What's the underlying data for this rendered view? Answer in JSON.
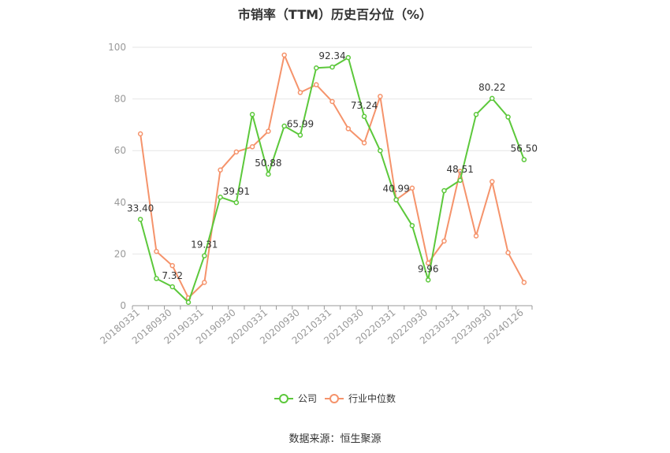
{
  "title": "市销率（TTM）历史百分位（%）",
  "source": "数据来源：恒生聚源",
  "colors": {
    "company": "#5cc83b",
    "industry": "#f5936b",
    "grid": "#e6e6e6",
    "axis": "#999999"
  },
  "chart_data": {
    "type": "line",
    "title": "市销率（TTM）历史百分位（%）",
    "xlabel": "",
    "ylabel": "",
    "ylim": [
      0,
      100
    ],
    "yticks": [
      0,
      20,
      40,
      60,
      80,
      100
    ],
    "grid": true,
    "legend_position": "bottom",
    "x": [
      "20180331",
      "20180630",
      "20180930",
      "20181231",
      "20190331",
      "20190630",
      "20190930",
      "20191231",
      "20200331",
      "20200630",
      "20200930",
      "20201231",
      "20210331",
      "20210630",
      "20210930",
      "20211231",
      "20220331",
      "20220630",
      "20220930",
      "20221231",
      "20230331",
      "20230630",
      "20230930",
      "20231231",
      "20240126"
    ],
    "xtick_labels": [
      "20180331",
      "20180930",
      "20190331",
      "20190930",
      "20200331",
      "20200930",
      "20210331",
      "20210930",
      "20220331",
      "20220930",
      "20230331",
      "20230930",
      "20240126"
    ],
    "series": [
      {
        "name": "公司",
        "values": [
          33.4,
          10.5,
          7.32,
          1.3,
          19.31,
          42.0,
          39.91,
          74.0,
          50.88,
          69.5,
          65.99,
          92.0,
          92.34,
          96.0,
          73.24,
          60.0,
          40.99,
          31.0,
          9.96,
          44.5,
          48.51,
          74.0,
          80.22,
          73.0,
          56.5
        ],
        "labels": {
          "0": "33.40",
          "2": "7.32",
          "4": "19.31",
          "6": "39.91",
          "8": "50.88",
          "10": "65.99",
          "12": "92.34",
          "14": "73.24",
          "16": "40.99",
          "18": "9.96",
          "20": "48.51",
          "22": "80.22",
          "24": "56.50"
        }
      },
      {
        "name": "行业中位数",
        "values": [
          66.5,
          21.0,
          15.5,
          3.0,
          9.0,
          52.5,
          59.5,
          61.5,
          67.5,
          97.0,
          82.5,
          85.5,
          79.0,
          68.5,
          63.0,
          81.0,
          41.0,
          45.5,
          16.5,
          25.0,
          52.0,
          27.0,
          48.0,
          20.5,
          9.0
        ]
      }
    ]
  }
}
